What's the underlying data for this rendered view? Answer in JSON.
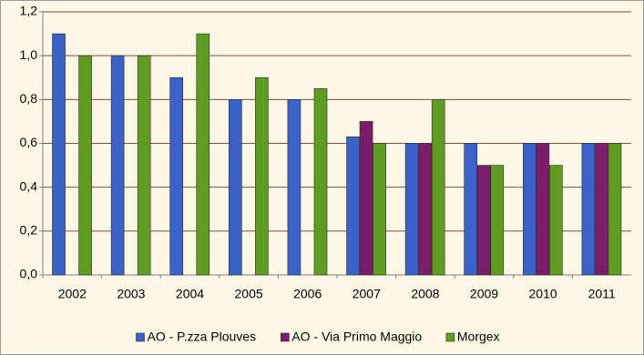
{
  "chart_data": {
    "type": "bar",
    "categories": [
      "2002",
      "2003",
      "2004",
      "2005",
      "2006",
      "2007",
      "2008",
      "2009",
      "2010",
      "2011"
    ],
    "series": [
      {
        "name": "AO - P.zza Plouves",
        "color": "#3a62c8",
        "values": [
          1.1,
          1.0,
          0.9,
          0.8,
          0.8,
          0.63,
          0.6,
          0.6,
          0.6,
          0.6
        ]
      },
      {
        "name": "AO - Via Primo Maggio",
        "color": "#7a1d6a",
        "values": [
          null,
          null,
          null,
          null,
          null,
          0.7,
          0.6,
          0.5,
          0.6,
          0.6
        ]
      },
      {
        "name": "Morgex",
        "color": "#5e9c22",
        "values": [
          1.0,
          1.0,
          1.1,
          0.9,
          0.85,
          0.6,
          0.8,
          0.5,
          0.5,
          0.6
        ]
      }
    ],
    "ylim": [
      0,
      1.2
    ],
    "yticks": [
      {
        "value": 0,
        "label": "0,0"
      },
      {
        "value": 0.2,
        "label": "0,2"
      },
      {
        "value": 0.4,
        "label": "0,4"
      },
      {
        "value": 0.6,
        "label": "0,6"
      },
      {
        "value": 0.8,
        "label": "0,8"
      },
      {
        "value": 1.0,
        "label": "1,0"
      },
      {
        "value": 1.2,
        "label": "1,2"
      }
    ],
    "grid": true,
    "legend": "bottom"
  }
}
